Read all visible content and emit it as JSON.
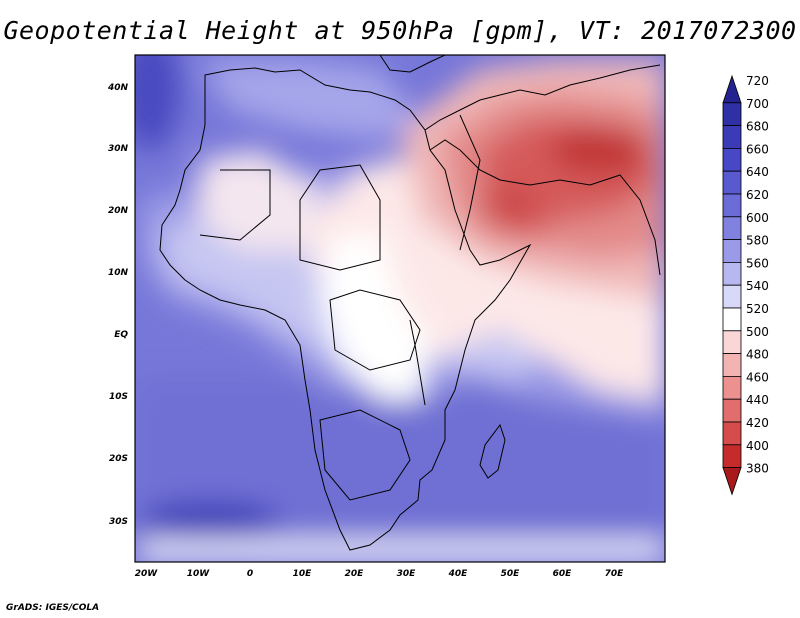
{
  "title": "Geopotential Height at 950hPa [gpm], VT: 2017072300",
  "credit": "GrADS: IGES/COLA",
  "map": {
    "lon_range": [
      -22,
      80
    ],
    "lat_range": [
      -37,
      45
    ],
    "lon_ticks": [
      "20W",
      "10W",
      "0",
      "10E",
      "20E",
      "30E",
      "40E",
      "50E",
      "60E",
      "70E"
    ],
    "lat_ticks": [
      "40N",
      "30N",
      "20N",
      "10N",
      "EQ",
      "10S",
      "20S",
      "30S"
    ]
  },
  "colorbar": {
    "levels": [
      "720",
      "700",
      "680",
      "660",
      "640",
      "620",
      "600",
      "580",
      "560",
      "540",
      "520",
      "500",
      "480",
      "460",
      "440",
      "420",
      "400",
      "380"
    ],
    "colors": [
      "#23238f",
      "#2f2fa6",
      "#3b3bb8",
      "#4848c6",
      "#5a5ad0",
      "#6c6cd8",
      "#8181e0",
      "#9a9ae8",
      "#b8b8f0",
      "#d8d8f8",
      "#ffffff",
      "#fbd6d6",
      "#f4b3b3",
      "#ec9090",
      "#e26d6d",
      "#d64b4b",
      "#c52b2b",
      "#a81919"
    ]
  }
}
